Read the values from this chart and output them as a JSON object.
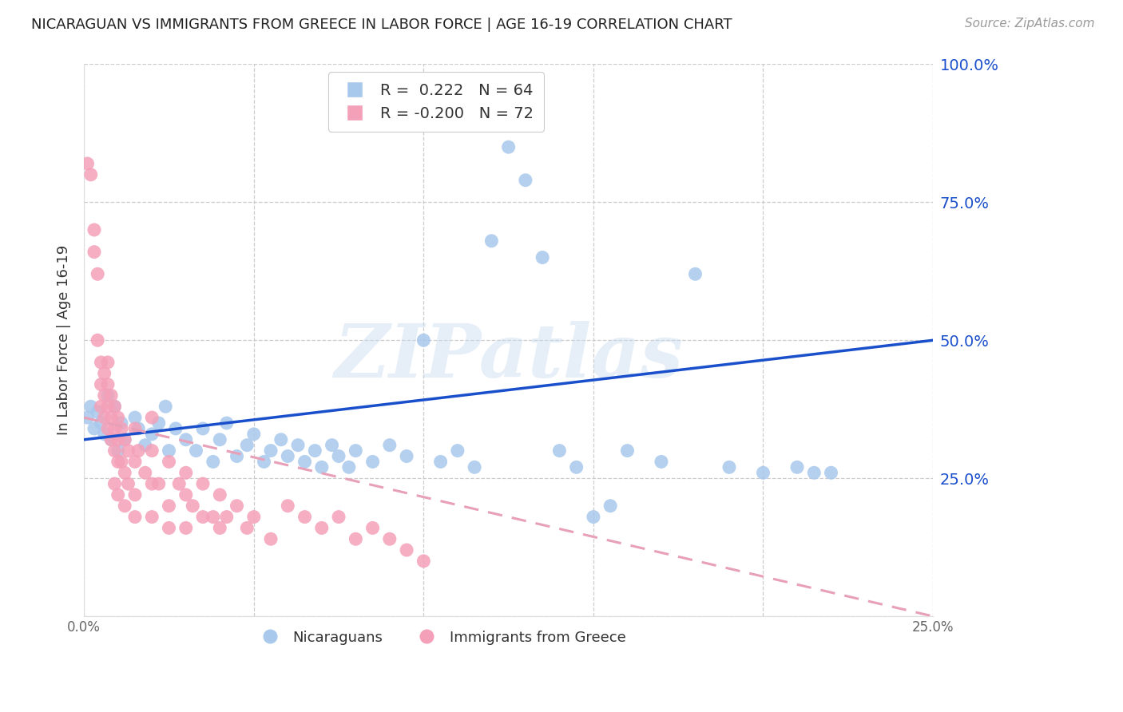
{
  "title": "NICARAGUAN VS IMMIGRANTS FROM GREECE IN LABOR FORCE | AGE 16-19 CORRELATION CHART",
  "source_text": "Source: ZipAtlas.com",
  "ylabel": "In Labor Force | Age 16-19",
  "xlim": [
    0.0,
    0.25
  ],
  "ylim": [
    0.0,
    1.0
  ],
  "blue_color": "#a8c8ec",
  "pink_color": "#f4a0b8",
  "blue_line_color": "#1a4fcc",
  "pink_line_color": "#e8a0b8",
  "watermark_color": "#c8daf0",
  "watermark_text": "ZIPatlas",
  "legend_label_blue": "Nicaraguans",
  "legend_label_pink": "Immigrants from Greece",
  "blue_dots": [
    [
      0.001,
      0.36
    ],
    [
      0.002,
      0.38
    ],
    [
      0.003,
      0.34
    ],
    [
      0.004,
      0.37
    ],
    [
      0.005,
      0.35
    ],
    [
      0.006,
      0.33
    ],
    [
      0.007,
      0.4
    ],
    [
      0.008,
      0.32
    ],
    [
      0.009,
      0.38
    ],
    [
      0.01,
      0.3
    ],
    [
      0.011,
      0.35
    ],
    [
      0.012,
      0.32
    ],
    [
      0.015,
      0.36
    ],
    [
      0.016,
      0.34
    ],
    [
      0.018,
      0.31
    ],
    [
      0.02,
      0.33
    ],
    [
      0.022,
      0.35
    ],
    [
      0.024,
      0.38
    ],
    [
      0.025,
      0.3
    ],
    [
      0.027,
      0.34
    ],
    [
      0.03,
      0.32
    ],
    [
      0.033,
      0.3
    ],
    [
      0.035,
      0.34
    ],
    [
      0.038,
      0.28
    ],
    [
      0.04,
      0.32
    ],
    [
      0.042,
      0.35
    ],
    [
      0.045,
      0.29
    ],
    [
      0.048,
      0.31
    ],
    [
      0.05,
      0.33
    ],
    [
      0.053,
      0.28
    ],
    [
      0.055,
      0.3
    ],
    [
      0.058,
      0.32
    ],
    [
      0.06,
      0.29
    ],
    [
      0.063,
      0.31
    ],
    [
      0.065,
      0.28
    ],
    [
      0.068,
      0.3
    ],
    [
      0.07,
      0.27
    ],
    [
      0.073,
      0.31
    ],
    [
      0.075,
      0.29
    ],
    [
      0.078,
      0.27
    ],
    [
      0.08,
      0.3
    ],
    [
      0.085,
      0.28
    ],
    [
      0.09,
      0.31
    ],
    [
      0.095,
      0.29
    ],
    [
      0.1,
      0.5
    ],
    [
      0.105,
      0.28
    ],
    [
      0.11,
      0.3
    ],
    [
      0.115,
      0.27
    ],
    [
      0.12,
      0.68
    ],
    [
      0.125,
      0.85
    ],
    [
      0.13,
      0.79
    ],
    [
      0.135,
      0.65
    ],
    [
      0.14,
      0.3
    ],
    [
      0.145,
      0.27
    ],
    [
      0.15,
      0.18
    ],
    [
      0.155,
      0.2
    ],
    [
      0.16,
      0.3
    ],
    [
      0.17,
      0.28
    ],
    [
      0.18,
      0.62
    ],
    [
      0.19,
      0.27
    ],
    [
      0.2,
      0.26
    ],
    [
      0.21,
      0.27
    ],
    [
      0.215,
      0.26
    ],
    [
      0.22,
      0.26
    ]
  ],
  "pink_dots": [
    [
      0.001,
      0.82
    ],
    [
      0.002,
      0.8
    ],
    [
      0.003,
      0.7
    ],
    [
      0.003,
      0.66
    ],
    [
      0.004,
      0.62
    ],
    [
      0.004,
      0.5
    ],
    [
      0.005,
      0.46
    ],
    [
      0.005,
      0.42
    ],
    [
      0.005,
      0.38
    ],
    [
      0.006,
      0.44
    ],
    [
      0.006,
      0.4
    ],
    [
      0.006,
      0.36
    ],
    [
      0.007,
      0.46
    ],
    [
      0.007,
      0.42
    ],
    [
      0.007,
      0.38
    ],
    [
      0.007,
      0.34
    ],
    [
      0.008,
      0.4
    ],
    [
      0.008,
      0.36
    ],
    [
      0.008,
      0.32
    ],
    [
      0.009,
      0.38
    ],
    [
      0.009,
      0.34
    ],
    [
      0.009,
      0.3
    ],
    [
      0.009,
      0.24
    ],
    [
      0.01,
      0.36
    ],
    [
      0.01,
      0.32
    ],
    [
      0.01,
      0.28
    ],
    [
      0.01,
      0.22
    ],
    [
      0.011,
      0.34
    ],
    [
      0.011,
      0.28
    ],
    [
      0.012,
      0.32
    ],
    [
      0.012,
      0.26
    ],
    [
      0.012,
      0.2
    ],
    [
      0.013,
      0.3
    ],
    [
      0.013,
      0.24
    ],
    [
      0.015,
      0.34
    ],
    [
      0.015,
      0.28
    ],
    [
      0.015,
      0.22
    ],
    [
      0.015,
      0.18
    ],
    [
      0.016,
      0.3
    ],
    [
      0.018,
      0.26
    ],
    [
      0.02,
      0.36
    ],
    [
      0.02,
      0.3
    ],
    [
      0.02,
      0.24
    ],
    [
      0.02,
      0.18
    ],
    [
      0.022,
      0.24
    ],
    [
      0.025,
      0.28
    ],
    [
      0.025,
      0.2
    ],
    [
      0.025,
      0.16
    ],
    [
      0.028,
      0.24
    ],
    [
      0.03,
      0.26
    ],
    [
      0.03,
      0.22
    ],
    [
      0.03,
      0.16
    ],
    [
      0.032,
      0.2
    ],
    [
      0.035,
      0.24
    ],
    [
      0.035,
      0.18
    ],
    [
      0.038,
      0.18
    ],
    [
      0.04,
      0.22
    ],
    [
      0.04,
      0.16
    ],
    [
      0.042,
      0.18
    ],
    [
      0.045,
      0.2
    ],
    [
      0.048,
      0.16
    ],
    [
      0.05,
      0.18
    ],
    [
      0.055,
      0.14
    ],
    [
      0.06,
      0.2
    ],
    [
      0.065,
      0.18
    ],
    [
      0.07,
      0.16
    ],
    [
      0.075,
      0.18
    ],
    [
      0.08,
      0.14
    ],
    [
      0.085,
      0.16
    ],
    [
      0.09,
      0.14
    ],
    [
      0.095,
      0.12
    ],
    [
      0.1,
      0.1
    ]
  ],
  "blue_line_x": [
    0.0,
    0.25
  ],
  "blue_line_y": [
    0.32,
    0.5
  ],
  "pink_line_x": [
    0.0,
    0.25
  ],
  "pink_line_y": [
    0.36,
    0.0
  ]
}
